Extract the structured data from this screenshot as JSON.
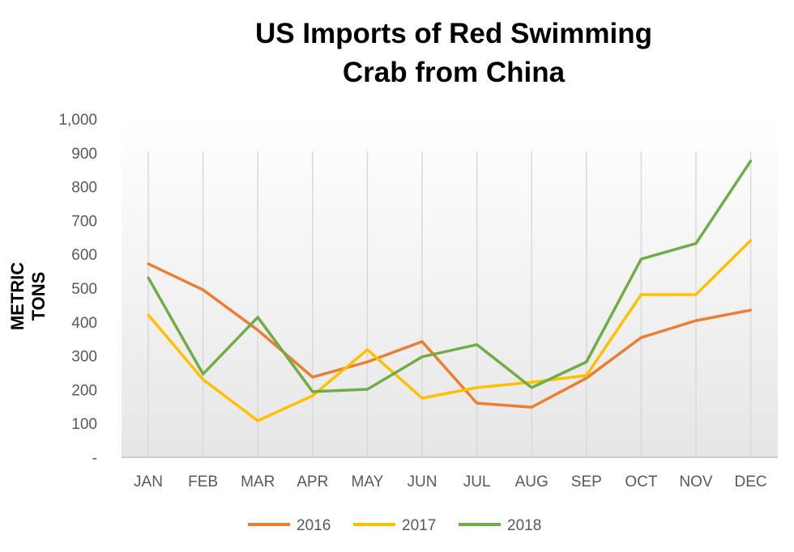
{
  "chart_data": {
    "type": "line",
    "title": "US Imports of Red Swimming Crab from China",
    "title_lines": [
      "US Imports of Red Swimming",
      "Crab from China"
    ],
    "xlabel": "",
    "ylabel": "METRIC TONS",
    "ylim": [
      0,
      1000
    ],
    "yticks": [
      0,
      100,
      200,
      300,
      400,
      500,
      600,
      700,
      800,
      900,
      1000
    ],
    "ytick_labels": [
      "-",
      "100",
      "200",
      "300",
      "400",
      "500",
      "600",
      "700",
      "800",
      "900",
      "1,000"
    ],
    "categories": [
      "JAN",
      "FEB",
      "MAR",
      "APR",
      "MAY",
      "JUN",
      "JUL",
      "AUG",
      "SEP",
      "OCT",
      "NOV",
      "DEC"
    ],
    "grid": "vertical",
    "legend_position": "bottom",
    "series": [
      {
        "name": "2016",
        "color": "#ED7D31",
        "values": [
          572,
          495,
          376,
          237,
          282,
          342,
          160,
          148,
          234,
          354,
          404,
          435
        ]
      },
      {
        "name": "2017",
        "color": "#FFC000",
        "values": [
          421,
          230,
          108,
          182,
          318,
          175,
          206,
          222,
          242,
          481,
          481,
          641
        ]
      },
      {
        "name": "2018",
        "color": "#70AD47",
        "values": [
          531,
          246,
          414,
          194,
          201,
          297,
          333,
          206,
          282,
          586,
          632,
          876
        ]
      }
    ]
  }
}
